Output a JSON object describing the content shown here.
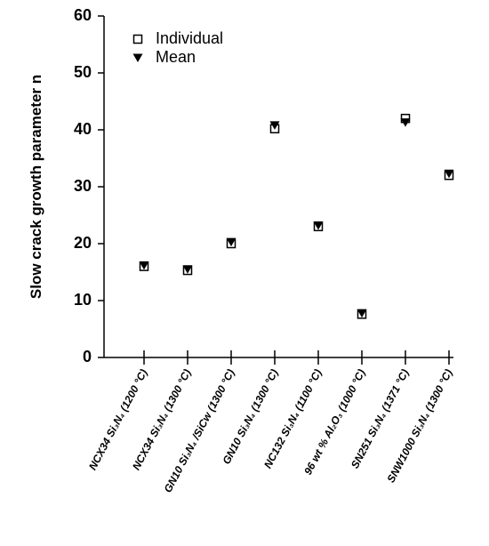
{
  "chart_data": {
    "type": "scatter",
    "y_label": "Slow crack growth parameter n",
    "categories": [
      "NCX34 Si₃N₄ (1200 °C)",
      "NCX34 Si₃N₄ (1300 °C)",
      "GN10 Si₃N₄ /SiCw (1300 °C)",
      "GN10 Si₃N₄ (1300 °C)",
      "NC132 Si₃N₄ (1100 °C)",
      "96 wt % Al₂O₃ (1000 °C)",
      "SN251 Si₃N₄ (1371 °C)",
      "SNW1000 Si₃N₄ (1300 °C)"
    ],
    "series": [
      {
        "name": "Individual",
        "color": "#000000",
        "marker": "square",
        "values": [
          16,
          15.3,
          20,
          40.2,
          23,
          7.6,
          42,
          32
        ]
      },
      {
        "name": "Mean",
        "color": "#000000",
        "marker": "triangle",
        "values": [
          16.2,
          15.5,
          20.3,
          40.8,
          23.2,
          7.8,
          41.3,
          32.3
        ]
      }
    ],
    "ylim": [
      0,
      60
    ],
    "yticks": [
      0,
      10,
      20,
      30,
      40,
      50,
      60
    ],
    "legend": "upper left"
  }
}
